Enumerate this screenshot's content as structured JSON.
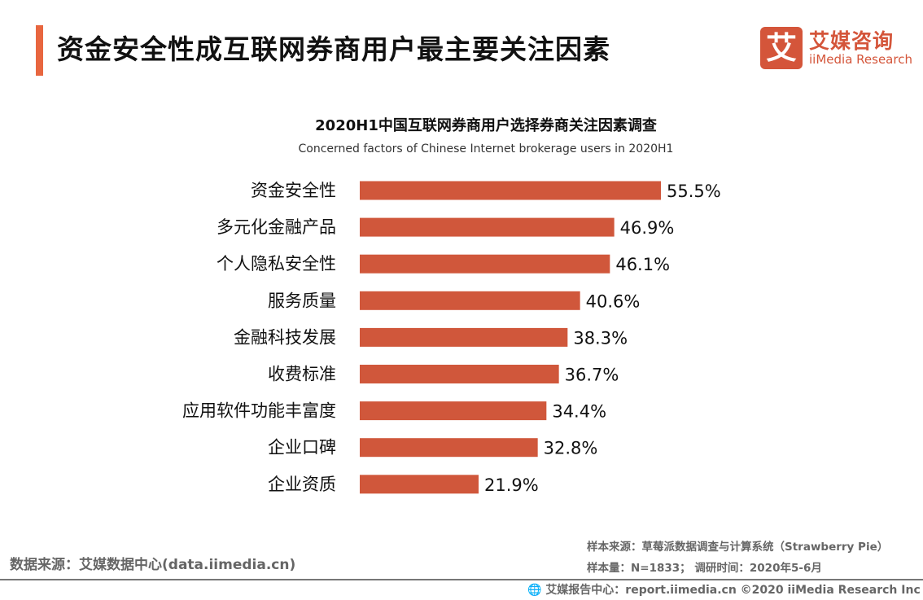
{
  "header": {
    "title": "资金安全性成互联网券商用户最主要关注因素"
  },
  "logo": {
    "mark": "艾",
    "cn": "艾媒咨询",
    "en": "iiMedia Research"
  },
  "chart_data": {
    "type": "bar",
    "orientation": "horizontal",
    "title": "2020H1中国互联网券商用户选择券商关注因素调查",
    "subtitle": "Concerned factors of Chinese Internet brokerage users in 2020H1",
    "categories": [
      "资金安全性",
      "多元化金融产品",
      "个人隐私安全性",
      "服务质量",
      "金融科技发展",
      "收费标准",
      "应用软件功能丰富度",
      "企业口碑",
      "企业资质"
    ],
    "values": [
      55.5,
      46.9,
      46.1,
      40.6,
      38.3,
      36.7,
      34.4,
      32.8,
      21.9
    ],
    "labels": [
      "55.5%",
      "46.9%",
      "46.1%",
      "40.6%",
      "38.3%",
      "36.7%",
      "34.4%",
      "32.8%",
      "21.9%"
    ],
    "unit": "%",
    "bar_color": "#D0573B",
    "grid": false
  },
  "footer": {
    "source": "数据来源：艾媒数据中心(data.iimedia.cn)",
    "sample_source": "样本来源：草莓派数据调查与计算系统（Strawberry Pie）",
    "sample_size": "样本量：N=1833； 调研时间：2020年5-6月",
    "copyright": "艾媒报告中心：report.iimedia.cn   ©2020  iiMedia Research  Inc"
  }
}
